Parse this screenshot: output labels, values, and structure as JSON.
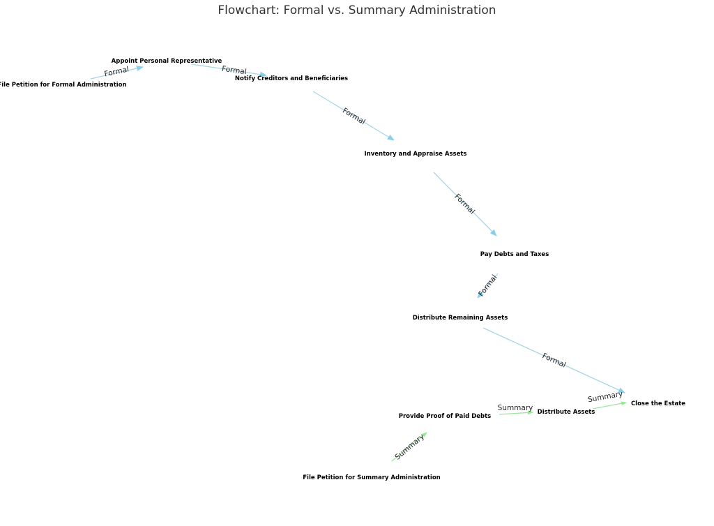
{
  "title": "Flowchart: Formal vs. Summary Administration",
  "colors": {
    "formal": "#87CEEB",
    "summary": "#90EE90"
  },
  "nodes": {
    "file_formal": "File Petition for Formal Administration",
    "appoint": "Appoint Personal Representative",
    "notify": "Notify Creditors and Beneficiaries",
    "inventory": "Inventory and Appraise Assets",
    "pay": "Pay Debts and Taxes",
    "distribute_remaining": "Distribute Remaining Assets",
    "close": "Close the Estate",
    "proof": "Provide Proof of Paid Debts",
    "distribute": "Distribute Assets",
    "file_summary": "File Petition for Summary Administration"
  },
  "edges": [
    {
      "from": "File Petition for Formal Administration",
      "to": "Appoint Personal Representative",
      "label": "Formal"
    },
    {
      "from": "Appoint Personal Representative",
      "to": "Notify Creditors and Beneficiaries",
      "label": "Formal"
    },
    {
      "from": "Notify Creditors and Beneficiaries",
      "to": "Inventory and Appraise Assets",
      "label": "Formal"
    },
    {
      "from": "Inventory and Appraise Assets",
      "to": "Pay Debts and Taxes",
      "label": "Formal"
    },
    {
      "from": "Pay Debts and Taxes",
      "to": "Distribute Remaining Assets",
      "label": "Formal"
    },
    {
      "from": "Distribute Remaining Assets",
      "to": "Close the Estate",
      "label": "Formal"
    },
    {
      "from": "File Petition for Summary Administration",
      "to": "Provide Proof of Paid Debts",
      "label": "Summary"
    },
    {
      "from": "Provide Proof of Paid Debts",
      "to": "Distribute Assets",
      "label": "Summary"
    },
    {
      "from": "Distribute Assets",
      "to": "Close the Estate",
      "label": "Summary"
    }
  ]
}
